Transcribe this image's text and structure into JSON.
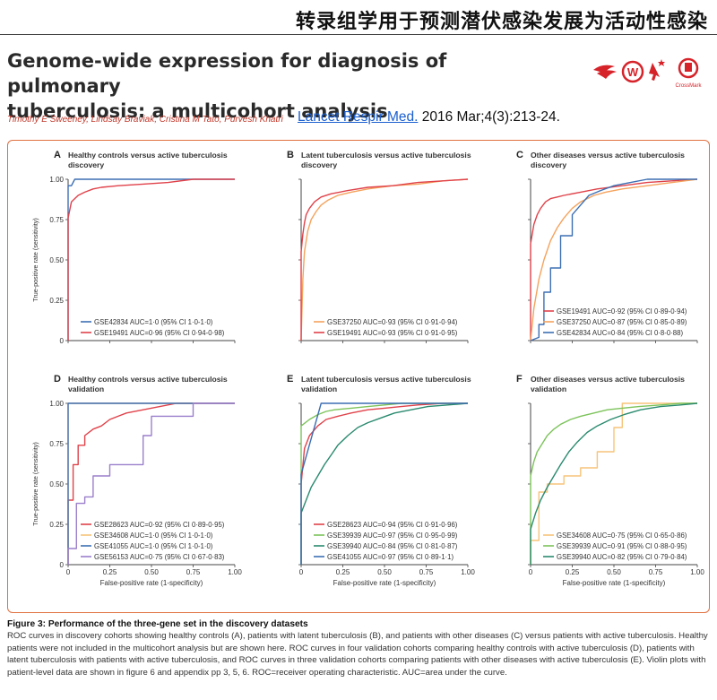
{
  "banner": "转录组学用于预测潜伏感染发展为活动性感染",
  "paper": {
    "title_line1": "Genome-wide expression for diagnosis of pulmonary",
    "title_line2": "tuberculosis: a multicohort analysis",
    "authors": "Timothy E Sweeney, Lindsay Braviak, Cristina M Tato, Purvesh Khatri",
    "journal_link": "Lancet Respir Med.",
    "citation_rest": " 2016 Mar;4(3):213-24.",
    "crossmark_label": "CrossMark"
  },
  "figure": {
    "caption_title": "Figure 3: Performance of the three-gene set in the discovery datasets",
    "caption_body": "ROC curves in discovery cohorts showing healthy controls (A), patients with latent tuberculosis (B), and patients with other diseases (C) versus patients with active tuberculosis. Healthy patients were not included in the multicohort analysis but are shown here. ROC curves in four validation cohorts comparing healthy controls with active tuberculosis (D), patients with latent tuberculosis with patients with active tuberculosis, and ROC curves in three validation cohorts comparing patients with other diseases with active tuberculosis (E). Violin plots with patient-level data are shown in figure 6 and appendix pp 3, 5, 6. ROC=receiver operating characteristic. AUC=area under the curve.",
    "ylabel": "True-positive rate (sensitivity)",
    "xlabel": "False-positive rate (1-specificity)",
    "y_ticks": [
      "0",
      "0.25",
      "0.50",
      "0.75",
      "1.00"
    ],
    "x_ticks": [
      "0",
      "0.25",
      "0.50",
      "0.75",
      "1.00"
    ]
  },
  "colors": {
    "blue": "#3c6fb4",
    "red": "#e0424a",
    "orange": "#f5a25d",
    "green": "#7cc35a",
    "darkgreen": "#2a8a6e",
    "purple": "#9b7fcb",
    "lightorange": "#f7c47a",
    "frame": "#e07040"
  },
  "chart_data": [
    {
      "type": "line",
      "letter": "A",
      "title_line1": "Healthy controls versus active tuberculosis",
      "title_line2": "discovery",
      "xlim": [
        0,
        1
      ],
      "ylim": [
        0,
        1
      ],
      "series": [
        {
          "name": "GSE42834 AUC=1·0 (95% CI 1·0-1·0)",
          "color": "blue",
          "x": [
            0,
            0,
            0.02,
            0.04,
            1
          ],
          "y": [
            0,
            0.96,
            0.96,
            1,
            1
          ]
        },
        {
          "name": "GSE19491 AUC=0·96 (95% CI 0·94-0·98)",
          "color": "red",
          "x": [
            0,
            0,
            0.02,
            0.04,
            0.06,
            0.1,
            0.15,
            0.2,
            0.3,
            0.45,
            0.6,
            0.75,
            1
          ],
          "y": [
            0,
            0.76,
            0.86,
            0.88,
            0.9,
            0.92,
            0.94,
            0.95,
            0.96,
            0.97,
            0.98,
            1,
            1
          ]
        }
      ]
    },
    {
      "type": "line",
      "letter": "B",
      "title_line1": "Latent tuberculosis versus active tuberculosis",
      "title_line2": "discovery",
      "xlim": [
        0,
        1
      ],
      "ylim": [
        0,
        1
      ],
      "series": [
        {
          "name": "GSE37250 AUC=0·93 (95% CI 0·91-0·94)",
          "color": "orange",
          "x": [
            0,
            0.01,
            0.02,
            0.04,
            0.06,
            0.09,
            0.12,
            0.16,
            0.22,
            0.3,
            0.4,
            0.55,
            0.7,
            0.85,
            1
          ],
          "y": [
            0,
            0.38,
            0.55,
            0.68,
            0.75,
            0.8,
            0.84,
            0.87,
            0.9,
            0.92,
            0.94,
            0.96,
            0.97,
            0.99,
            1
          ]
        },
        {
          "name": "GSE19491 AUC=0·93 (95% CI 0·91-0·95)",
          "color": "red",
          "x": [
            0,
            0,
            0.01,
            0.02,
            0.03,
            0.05,
            0.08,
            0.12,
            0.18,
            0.28,
            0.4,
            0.55,
            0.7,
            0.85,
            1
          ],
          "y": [
            0,
            0.55,
            0.66,
            0.73,
            0.78,
            0.82,
            0.86,
            0.89,
            0.91,
            0.93,
            0.95,
            0.96,
            0.98,
            0.99,
            1
          ]
        }
      ]
    },
    {
      "type": "line",
      "letter": "C",
      "title_line1": "Other diseases versus active tuberculosis",
      "title_line2": "discovery",
      "xlim": [
        0,
        1
      ],
      "ylim": [
        0,
        1
      ],
      "series": [
        {
          "name": "GSE19491 AUC=0·92 (95% CI 0·89-0·94)",
          "color": "red",
          "x": [
            0,
            0,
            0.02,
            0.04,
            0.06,
            0.09,
            0.12,
            0.16,
            0.2,
            0.3,
            0.4,
            0.55,
            0.7,
            1
          ],
          "y": [
            0,
            0.6,
            0.72,
            0.78,
            0.82,
            0.86,
            0.88,
            0.89,
            0.9,
            0.92,
            0.94,
            0.96,
            0.98,
            1
          ]
        },
        {
          "name": "GSE37250 AUC=0·87 (95% CI 0·85-0·89)",
          "color": "orange",
          "x": [
            0,
            0.02,
            0.05,
            0.08,
            0.12,
            0.16,
            0.2,
            0.25,
            0.3,
            0.38,
            0.45,
            0.55,
            0.7,
            0.85,
            1
          ],
          "y": [
            0,
            0.2,
            0.38,
            0.5,
            0.62,
            0.7,
            0.76,
            0.82,
            0.86,
            0.9,
            0.92,
            0.94,
            0.96,
            0.98,
            1
          ]
        },
        {
          "name": "GSE42834 AUC=0·84 (95% CI 0·8-0·88)",
          "color": "blue",
          "x": [
            0,
            0.05,
            0.05,
            0.08,
            0.08,
            0.12,
            0.12,
            0.18,
            0.18,
            0.25,
            0.25,
            0.3,
            0.35,
            0.42,
            0.5,
            0.6,
            0.7,
            0.8,
            1
          ],
          "y": [
            0,
            0.02,
            0.1,
            0.1,
            0.3,
            0.3,
            0.45,
            0.45,
            0.65,
            0.65,
            0.78,
            0.84,
            0.9,
            0.93,
            0.96,
            0.98,
            1,
            1,
            1
          ]
        }
      ]
    },
    {
      "type": "line",
      "letter": "D",
      "title_line1": "Healthy controls versus active tuberculosis",
      "title_line2": "validation",
      "xlim": [
        0,
        1
      ],
      "ylim": [
        0,
        1
      ],
      "series": [
        {
          "name": "GSE28623 AUC=0·92 (95% CI 0·89-0·95)",
          "color": "red",
          "x": [
            0,
            0,
            0.03,
            0.03,
            0.06,
            0.06,
            0.1,
            0.1,
            0.15,
            0.2,
            0.25,
            0.3,
            0.35,
            0.45,
            0.55,
            0.65,
            1
          ],
          "y": [
            0,
            0.4,
            0.4,
            0.62,
            0.62,
            0.74,
            0.74,
            0.8,
            0.84,
            0.86,
            0.9,
            0.92,
            0.94,
            0.96,
            0.98,
            1,
            1
          ]
        },
        {
          "name": "GSE34608 AUC=1·0 (95% CI 1·0-1·0)",
          "color": "lightorange",
          "x": [
            0,
            0,
            1
          ],
          "y": [
            0,
            1,
            1
          ]
        },
        {
          "name": "GSE41055 AUC=1·0 (95% CI 1·0-1·0)",
          "color": "blue",
          "x": [
            0,
            0,
            1
          ],
          "y": [
            0,
            1,
            1
          ]
        },
        {
          "name": "GSE56153 AUC=0·75 (95% CI 0·67-0·83)",
          "color": "purple",
          "x": [
            0,
            0,
            0.05,
            0.05,
            0.1,
            0.1,
            0.15,
            0.15,
            0.25,
            0.25,
            0.45,
            0.45,
            0.5,
            0.5,
            0.75,
            0.75,
            1
          ],
          "y": [
            0,
            0.1,
            0.1,
            0.38,
            0.38,
            0.42,
            0.42,
            0.55,
            0.55,
            0.62,
            0.62,
            0.8,
            0.8,
            0.92,
            0.92,
            1,
            1
          ]
        }
      ]
    },
    {
      "type": "line",
      "letter": "E",
      "title_line1": "Latent tuberculosis versus active tuberculosis",
      "title_line2": "validation",
      "xlim": [
        0,
        1
      ],
      "ylim": [
        0,
        1
      ],
      "series": [
        {
          "name": "GSE28623 AUC=0·94 (95% CI 0·91-0·96)",
          "color": "red",
          "x": [
            0,
            0,
            0.02,
            0.05,
            0.1,
            0.15,
            0.22,
            0.3,
            0.4,
            0.5,
            0.6,
            0.7,
            0.85,
            1
          ],
          "y": [
            0,
            0.5,
            0.72,
            0.8,
            0.86,
            0.9,
            0.92,
            0.94,
            0.96,
            0.97,
            0.98,
            0.99,
            1,
            1
          ]
        },
        {
          "name": "GSE39939 AUC=0·97 (95% CI 0·95-0·99)",
          "color": "green",
          "x": [
            0,
            0,
            0.05,
            0.1,
            0.15,
            0.2,
            0.3,
            0.4,
            0.5,
            0.6,
            0.8,
            1
          ],
          "y": [
            0,
            0.86,
            0.9,
            0.93,
            0.95,
            0.96,
            0.97,
            0.98,
            0.99,
            1,
            1,
            1
          ]
        },
        {
          "name": "GSE39940 AUC=0·84 (95% CI 0·81-0·87)",
          "color": "darkgreen",
          "x": [
            0,
            0,
            0.03,
            0.06,
            0.1,
            0.14,
            0.18,
            0.22,
            0.28,
            0.34,
            0.4,
            0.48,
            0.56,
            0.66,
            0.76,
            0.88,
            1
          ],
          "y": [
            0,
            0.32,
            0.4,
            0.48,
            0.55,
            0.62,
            0.68,
            0.74,
            0.8,
            0.85,
            0.88,
            0.91,
            0.94,
            0.96,
            0.98,
            0.99,
            1
          ]
        },
        {
          "name": "GSE41055 AUC=0·97 (95% CI 0·89-1·1)",
          "color": "blue",
          "x": [
            0,
            0,
            0.12,
            0.12,
            1
          ],
          "y": [
            0,
            0.56,
            1,
            1,
            1
          ]
        }
      ]
    },
    {
      "type": "line",
      "letter": "F",
      "title_line1": "Other diseases versus active tuberculosis",
      "title_line2": "validation",
      "xlim": [
        0,
        1
      ],
      "ylim": [
        0,
        1
      ],
      "series": [
        {
          "name": "GSE34608 AUC=0·75 (95% CI 0·65-0·86)",
          "color": "lightorange",
          "x": [
            0,
            0,
            0.05,
            0.05,
            0.1,
            0.1,
            0.2,
            0.2,
            0.3,
            0.3,
            0.4,
            0.4,
            0.5,
            0.5,
            0.55,
            0.55,
            1
          ],
          "y": [
            0,
            0.15,
            0.15,
            0.45,
            0.45,
            0.5,
            0.5,
            0.55,
            0.55,
            0.6,
            0.6,
            0.7,
            0.7,
            0.85,
            0.85,
            1,
            1
          ]
        },
        {
          "name": "GSE39939 AUC=0·91 (95% CI 0·88-0·95)",
          "color": "green",
          "x": [
            0,
            0,
            0.02,
            0.04,
            0.07,
            0.1,
            0.14,
            0.18,
            0.24,
            0.3,
            0.38,
            0.46,
            0.55,
            0.65,
            0.78,
            0.9,
            1
          ],
          "y": [
            0,
            0.55,
            0.64,
            0.7,
            0.75,
            0.8,
            0.84,
            0.87,
            0.9,
            0.92,
            0.94,
            0.96,
            0.97,
            0.98,
            0.99,
            1,
            1
          ]
        },
        {
          "name": "GSE39940 AUC=0·82 (95% CI 0·79-0·84)",
          "color": "darkgreen",
          "x": [
            0,
            0,
            0.03,
            0.06,
            0.1,
            0.14,
            0.18,
            0.23,
            0.28,
            0.34,
            0.4,
            0.48,
            0.56,
            0.66,
            0.78,
            0.9,
            1
          ],
          "y": [
            0,
            0.22,
            0.32,
            0.4,
            0.48,
            0.55,
            0.62,
            0.7,
            0.76,
            0.82,
            0.86,
            0.9,
            0.93,
            0.96,
            0.98,
            0.99,
            1
          ]
        }
      ]
    }
  ]
}
